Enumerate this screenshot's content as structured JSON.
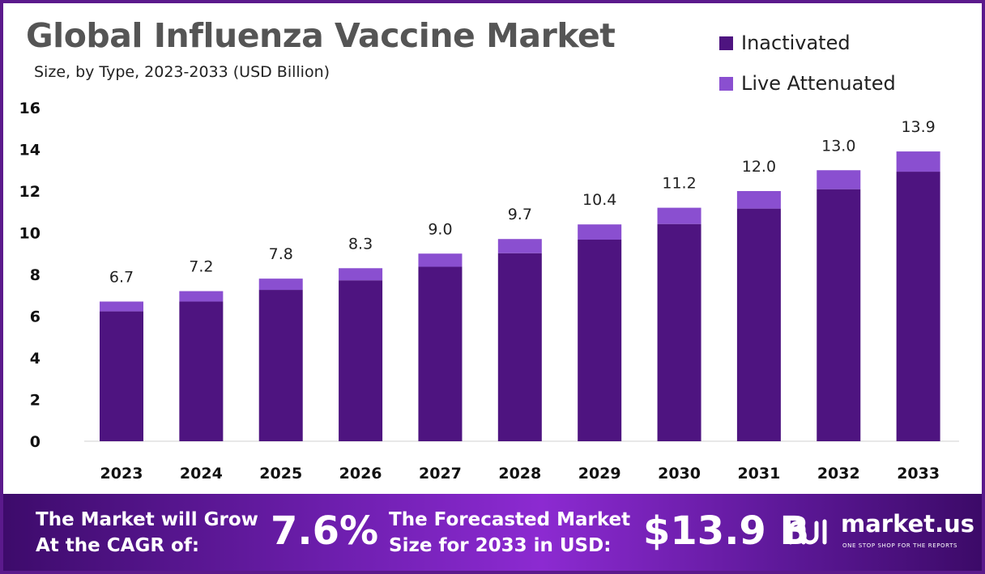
{
  "chart_data": {
    "type": "bar",
    "stacked": true,
    "title": "Global Influenza Vaccine Market",
    "subtitle": "Size, by Type, 2023-2033 (USD Billion)",
    "categories": [
      "2023",
      "2024",
      "2025",
      "2026",
      "2027",
      "2028",
      "2029",
      "2030",
      "2031",
      "2032",
      "2033"
    ],
    "series": [
      {
        "name": "Inactivated",
        "color": "#4e1480",
        "values": [
          6.23,
          6.7,
          7.26,
          7.72,
          8.37,
          9.02,
          9.67,
          10.42,
          11.16,
          12.09,
          12.93
        ]
      },
      {
        "name": "Live Attenuated",
        "color": "#8a4fd0",
        "values": [
          0.47,
          0.5,
          0.54,
          0.58,
          0.63,
          0.68,
          0.73,
          0.78,
          0.84,
          0.91,
          0.97
        ]
      }
    ],
    "totals": [
      "6.7",
      "7.2",
      "7.8",
      "8.3",
      "9.0",
      "9.7",
      "10.4",
      "11.2",
      "12.0",
      "13.0",
      "13.9"
    ],
    "yticks": [
      "0",
      "2",
      "4",
      "6",
      "8",
      "10",
      "12",
      "14",
      "16"
    ],
    "ylim": [
      0,
      16
    ],
    "grid": false,
    "legend_position": "top-right"
  },
  "footer": {
    "cagr_label_line1": "The Market will Grow",
    "cagr_label_line2": "At the CAGR of:",
    "cagr_value": "7.6%",
    "forecast_label_line1": "The Forecasted Market",
    "forecast_label_line2": "Size for 2033 in USD:",
    "forecast_value": "$13.9 B",
    "logo_icon": "market-us-logo-icon",
    "brand_name": "market.us",
    "brand_tagline": "ONE STOP SHOP FOR THE REPORTS"
  }
}
